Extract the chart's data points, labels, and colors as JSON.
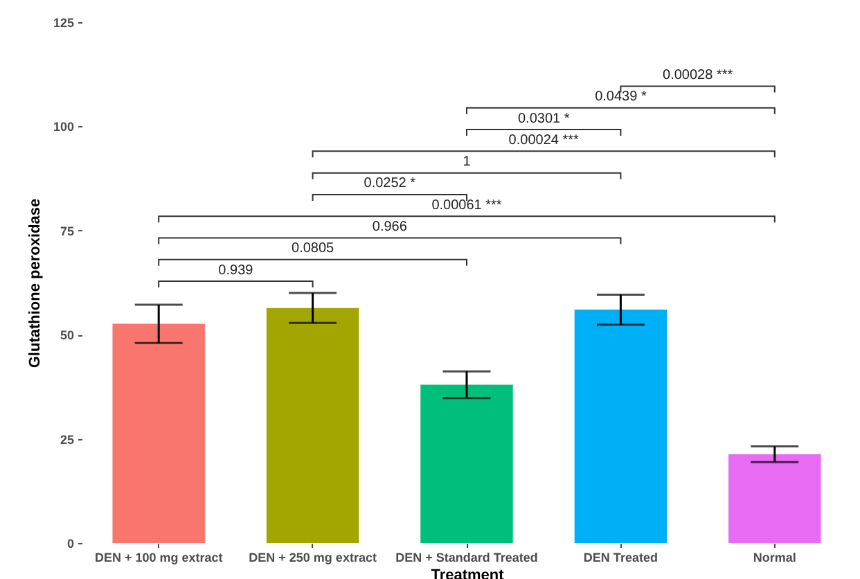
{
  "chart_data": {
    "type": "bar",
    "xlabel": "Treatment",
    "ylabel": "Glutathione peroxidase",
    "categories": [
      "DEN + 100 mg extract",
      "DEN + 250 mg extract",
      "DEN + Standard Treated",
      "DEN Treated",
      "Normal"
    ],
    "values": [
      52.6,
      56.4,
      38.0,
      56.0,
      21.3
    ],
    "errors": [
      4.6,
      3.6,
      3.2,
      3.6,
      1.9
    ],
    "colors": [
      "#f8766d",
      "#a3a500",
      "#00bf7d",
      "#00b0f6",
      "#e76bf3"
    ],
    "ylim": [
      0,
      125
    ],
    "yticks": [
      0,
      25,
      50,
      75,
      100,
      125
    ],
    "annotations": [
      "0.00028 ***",
      "0.0439 *",
      "0.0301 *",
      "0.00024 ***",
      "1",
      "0.0252 *",
      "0.00061 ***",
      "0.966",
      "0.0805",
      "0.939"
    ]
  }
}
